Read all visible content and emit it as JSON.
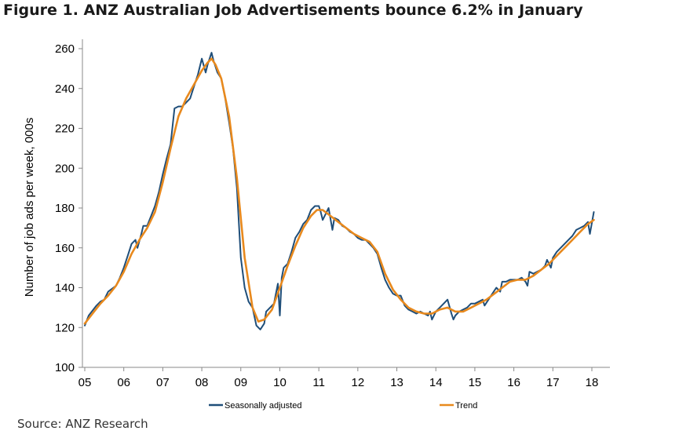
{
  "title": "Figure 1. ANZ Australian Job Advertisements bounce 6.2% in January",
  "source": "Source: ANZ Research",
  "chart_data": {
    "type": "line",
    "ylabel": "Number of job ads per week, 000s",
    "xlabel": "",
    "ylim": [
      100,
      260
    ],
    "xlim": [
      2005,
      2018.5
    ],
    "yticks": [
      100,
      120,
      140,
      160,
      180,
      200,
      220,
      240,
      260
    ],
    "xticks": [
      {
        "x": 2005,
        "label": "05"
      },
      {
        "x": 2006,
        "label": "06"
      },
      {
        "x": 2007,
        "label": "07"
      },
      {
        "x": 2008,
        "label": "08"
      },
      {
        "x": 2009,
        "label": "09"
      },
      {
        "x": 2010,
        "label": "10"
      },
      {
        "x": 2011,
        "label": "11"
      },
      {
        "x": 2012,
        "label": "12"
      },
      {
        "x": 2013,
        "label": "13"
      },
      {
        "x": 2014,
        "label": "14"
      },
      {
        "x": 2015,
        "label": "15"
      },
      {
        "x": 2016,
        "label": "16"
      },
      {
        "x": 2017,
        "label": "17"
      },
      {
        "x": 2018,
        "label": "18"
      }
    ],
    "grid": false,
    "legend_position": "bottom",
    "series": [
      {
        "name": "Seasonally adjusted",
        "color": "#1f4e79",
        "points": [
          [
            2005.0,
            121
          ],
          [
            2005.1,
            126
          ],
          [
            2005.3,
            131
          ],
          [
            2005.4,
            133
          ],
          [
            2005.5,
            134
          ],
          [
            2005.6,
            138
          ],
          [
            2005.8,
            141
          ],
          [
            2005.9,
            145
          ],
          [
            2006.0,
            150
          ],
          [
            2006.1,
            156
          ],
          [
            2006.2,
            162
          ],
          [
            2006.3,
            164
          ],
          [
            2006.35,
            160
          ],
          [
            2006.45,
            167
          ],
          [
            2006.5,
            171
          ],
          [
            2006.6,
            171
          ],
          [
            2006.7,
            176
          ],
          [
            2006.8,
            181
          ],
          [
            2006.9,
            188
          ],
          [
            2007.0,
            197
          ],
          [
            2007.1,
            205
          ],
          [
            2007.2,
            212
          ],
          [
            2007.3,
            230
          ],
          [
            2007.4,
            231
          ],
          [
            2007.5,
            231
          ],
          [
            2007.6,
            233
          ],
          [
            2007.7,
            235
          ],
          [
            2007.8,
            241
          ],
          [
            2007.9,
            247
          ],
          [
            2008.0,
            255
          ],
          [
            2008.1,
            248
          ],
          [
            2008.15,
            252
          ],
          [
            2008.25,
            258
          ],
          [
            2008.3,
            254
          ],
          [
            2008.4,
            248
          ],
          [
            2008.5,
            245
          ],
          [
            2008.6,
            235
          ],
          [
            2008.7,
            223
          ],
          [
            2008.8,
            210
          ],
          [
            2008.9,
            190
          ],
          [
            2009.0,
            155
          ],
          [
            2009.1,
            140
          ],
          [
            2009.2,
            133
          ],
          [
            2009.3,
            130
          ],
          [
            2009.4,
            121
          ],
          [
            2009.5,
            119
          ],
          [
            2009.6,
            122
          ],
          [
            2009.65,
            128
          ],
          [
            2009.75,
            130
          ],
          [
            2009.85,
            132
          ],
          [
            2009.95,
            142
          ],
          [
            2010.0,
            126
          ],
          [
            2010.05,
            145
          ],
          [
            2010.1,
            150
          ],
          [
            2010.2,
            152
          ],
          [
            2010.3,
            158
          ],
          [
            2010.4,
            165
          ],
          [
            2010.5,
            168
          ],
          [
            2010.6,
            172
          ],
          [
            2010.7,
            174
          ],
          [
            2010.8,
            179
          ],
          [
            2010.9,
            181
          ],
          [
            2011.0,
            181
          ],
          [
            2011.05,
            178
          ],
          [
            2011.1,
            174
          ],
          [
            2011.2,
            178
          ],
          [
            2011.25,
            180
          ],
          [
            2011.35,
            169
          ],
          [
            2011.4,
            175
          ],
          [
            2011.5,
            174
          ],
          [
            2011.6,
            171
          ],
          [
            2011.7,
            170
          ],
          [
            2011.8,
            168
          ],
          [
            2011.9,
            167
          ],
          [
            2012.0,
            165
          ],
          [
            2012.1,
            164
          ],
          [
            2012.2,
            164
          ],
          [
            2012.3,
            162
          ],
          [
            2012.4,
            160
          ],
          [
            2012.5,
            157
          ],
          [
            2012.6,
            150
          ],
          [
            2012.7,
            144
          ],
          [
            2012.8,
            140
          ],
          [
            2012.9,
            137
          ],
          [
            2013.0,
            136
          ],
          [
            2013.1,
            136
          ],
          [
            2013.2,
            131
          ],
          [
            2013.3,
            129
          ],
          [
            2013.4,
            128
          ],
          [
            2013.5,
            127
          ],
          [
            2013.6,
            128
          ],
          [
            2013.7,
            127
          ],
          [
            2013.8,
            126
          ],
          [
            2013.85,
            128
          ],
          [
            2013.9,
            124
          ],
          [
            2014.0,
            128
          ],
          [
            2014.1,
            130
          ],
          [
            2014.2,
            132
          ],
          [
            2014.3,
            134
          ],
          [
            2014.4,
            127
          ],
          [
            2014.45,
            124
          ],
          [
            2014.5,
            126
          ],
          [
            2014.6,
            128
          ],
          [
            2014.7,
            129
          ],
          [
            2014.8,
            130
          ],
          [
            2014.9,
            132
          ],
          [
            2015.0,
            132
          ],
          [
            2015.1,
            133
          ],
          [
            2015.2,
            134
          ],
          [
            2015.25,
            131
          ],
          [
            2015.35,
            134
          ],
          [
            2015.45,
            137
          ],
          [
            2015.55,
            140
          ],
          [
            2015.65,
            138
          ],
          [
            2015.7,
            143
          ],
          [
            2015.8,
            143
          ],
          [
            2015.9,
            144
          ],
          [
            2016.0,
            144
          ],
          [
            2016.1,
            144
          ],
          [
            2016.2,
            145
          ],
          [
            2016.3,
            143
          ],
          [
            2016.35,
            141
          ],
          [
            2016.4,
            148
          ],
          [
            2016.5,
            147
          ],
          [
            2016.6,
            148
          ],
          [
            2016.7,
            149
          ],
          [
            2016.8,
            151
          ],
          [
            2016.85,
            154
          ],
          [
            2016.95,
            150
          ],
          [
            2017.0,
            155
          ],
          [
            2017.1,
            158
          ],
          [
            2017.2,
            160
          ],
          [
            2017.3,
            162
          ],
          [
            2017.4,
            164
          ],
          [
            2017.5,
            166
          ],
          [
            2017.6,
            169
          ],
          [
            2017.7,
            170
          ],
          [
            2017.8,
            171
          ],
          [
            2017.9,
            173
          ],
          [
            2017.95,
            167
          ],
          [
            2018.05,
            178
          ]
        ]
      },
      {
        "name": "Trend",
        "color": "#e8891d",
        "points": [
          [
            2005.0,
            122
          ],
          [
            2005.2,
            127
          ],
          [
            2005.4,
            132
          ],
          [
            2005.6,
            136
          ],
          [
            2005.8,
            141
          ],
          [
            2006.0,
            148
          ],
          [
            2006.2,
            157
          ],
          [
            2006.4,
            164
          ],
          [
            2006.6,
            170
          ],
          [
            2006.8,
            178
          ],
          [
            2007.0,
            193
          ],
          [
            2007.2,
            210
          ],
          [
            2007.4,
            226
          ],
          [
            2007.6,
            235
          ],
          [
            2007.8,
            242
          ],
          [
            2008.0,
            249
          ],
          [
            2008.15,
            253
          ],
          [
            2008.25,
            255
          ],
          [
            2008.35,
            252
          ],
          [
            2008.5,
            245
          ],
          [
            2008.7,
            226
          ],
          [
            2008.9,
            195
          ],
          [
            2009.1,
            155
          ],
          [
            2009.3,
            130
          ],
          [
            2009.45,
            123
          ],
          [
            2009.6,
            124
          ],
          [
            2009.8,
            129
          ],
          [
            2010.0,
            140
          ],
          [
            2010.2,
            151
          ],
          [
            2010.4,
            161
          ],
          [
            2010.6,
            170
          ],
          [
            2010.8,
            176
          ],
          [
            2010.95,
            179
          ],
          [
            2011.1,
            179
          ],
          [
            2011.3,
            176
          ],
          [
            2011.5,
            173
          ],
          [
            2011.7,
            170
          ],
          [
            2011.9,
            167
          ],
          [
            2012.1,
            165
          ],
          [
            2012.3,
            163
          ],
          [
            2012.5,
            158
          ],
          [
            2012.7,
            147
          ],
          [
            2012.9,
            139
          ],
          [
            2013.1,
            134
          ],
          [
            2013.3,
            130
          ],
          [
            2013.5,
            128
          ],
          [
            2013.7,
            127
          ],
          [
            2013.9,
            127
          ],
          [
            2014.1,
            129
          ],
          [
            2014.3,
            130
          ],
          [
            2014.5,
            128
          ],
          [
            2014.7,
            128
          ],
          [
            2014.9,
            130
          ],
          [
            2015.1,
            132
          ],
          [
            2015.3,
            134
          ],
          [
            2015.5,
            137
          ],
          [
            2015.7,
            140
          ],
          [
            2015.9,
            143
          ],
          [
            2016.1,
            144
          ],
          [
            2016.3,
            144
          ],
          [
            2016.5,
            146
          ],
          [
            2016.7,
            149
          ],
          [
            2016.9,
            152
          ],
          [
            2017.1,
            156
          ],
          [
            2017.3,
            160
          ],
          [
            2017.5,
            164
          ],
          [
            2017.7,
            168
          ],
          [
            2017.9,
            172
          ],
          [
            2018.05,
            174
          ]
        ]
      }
    ]
  }
}
